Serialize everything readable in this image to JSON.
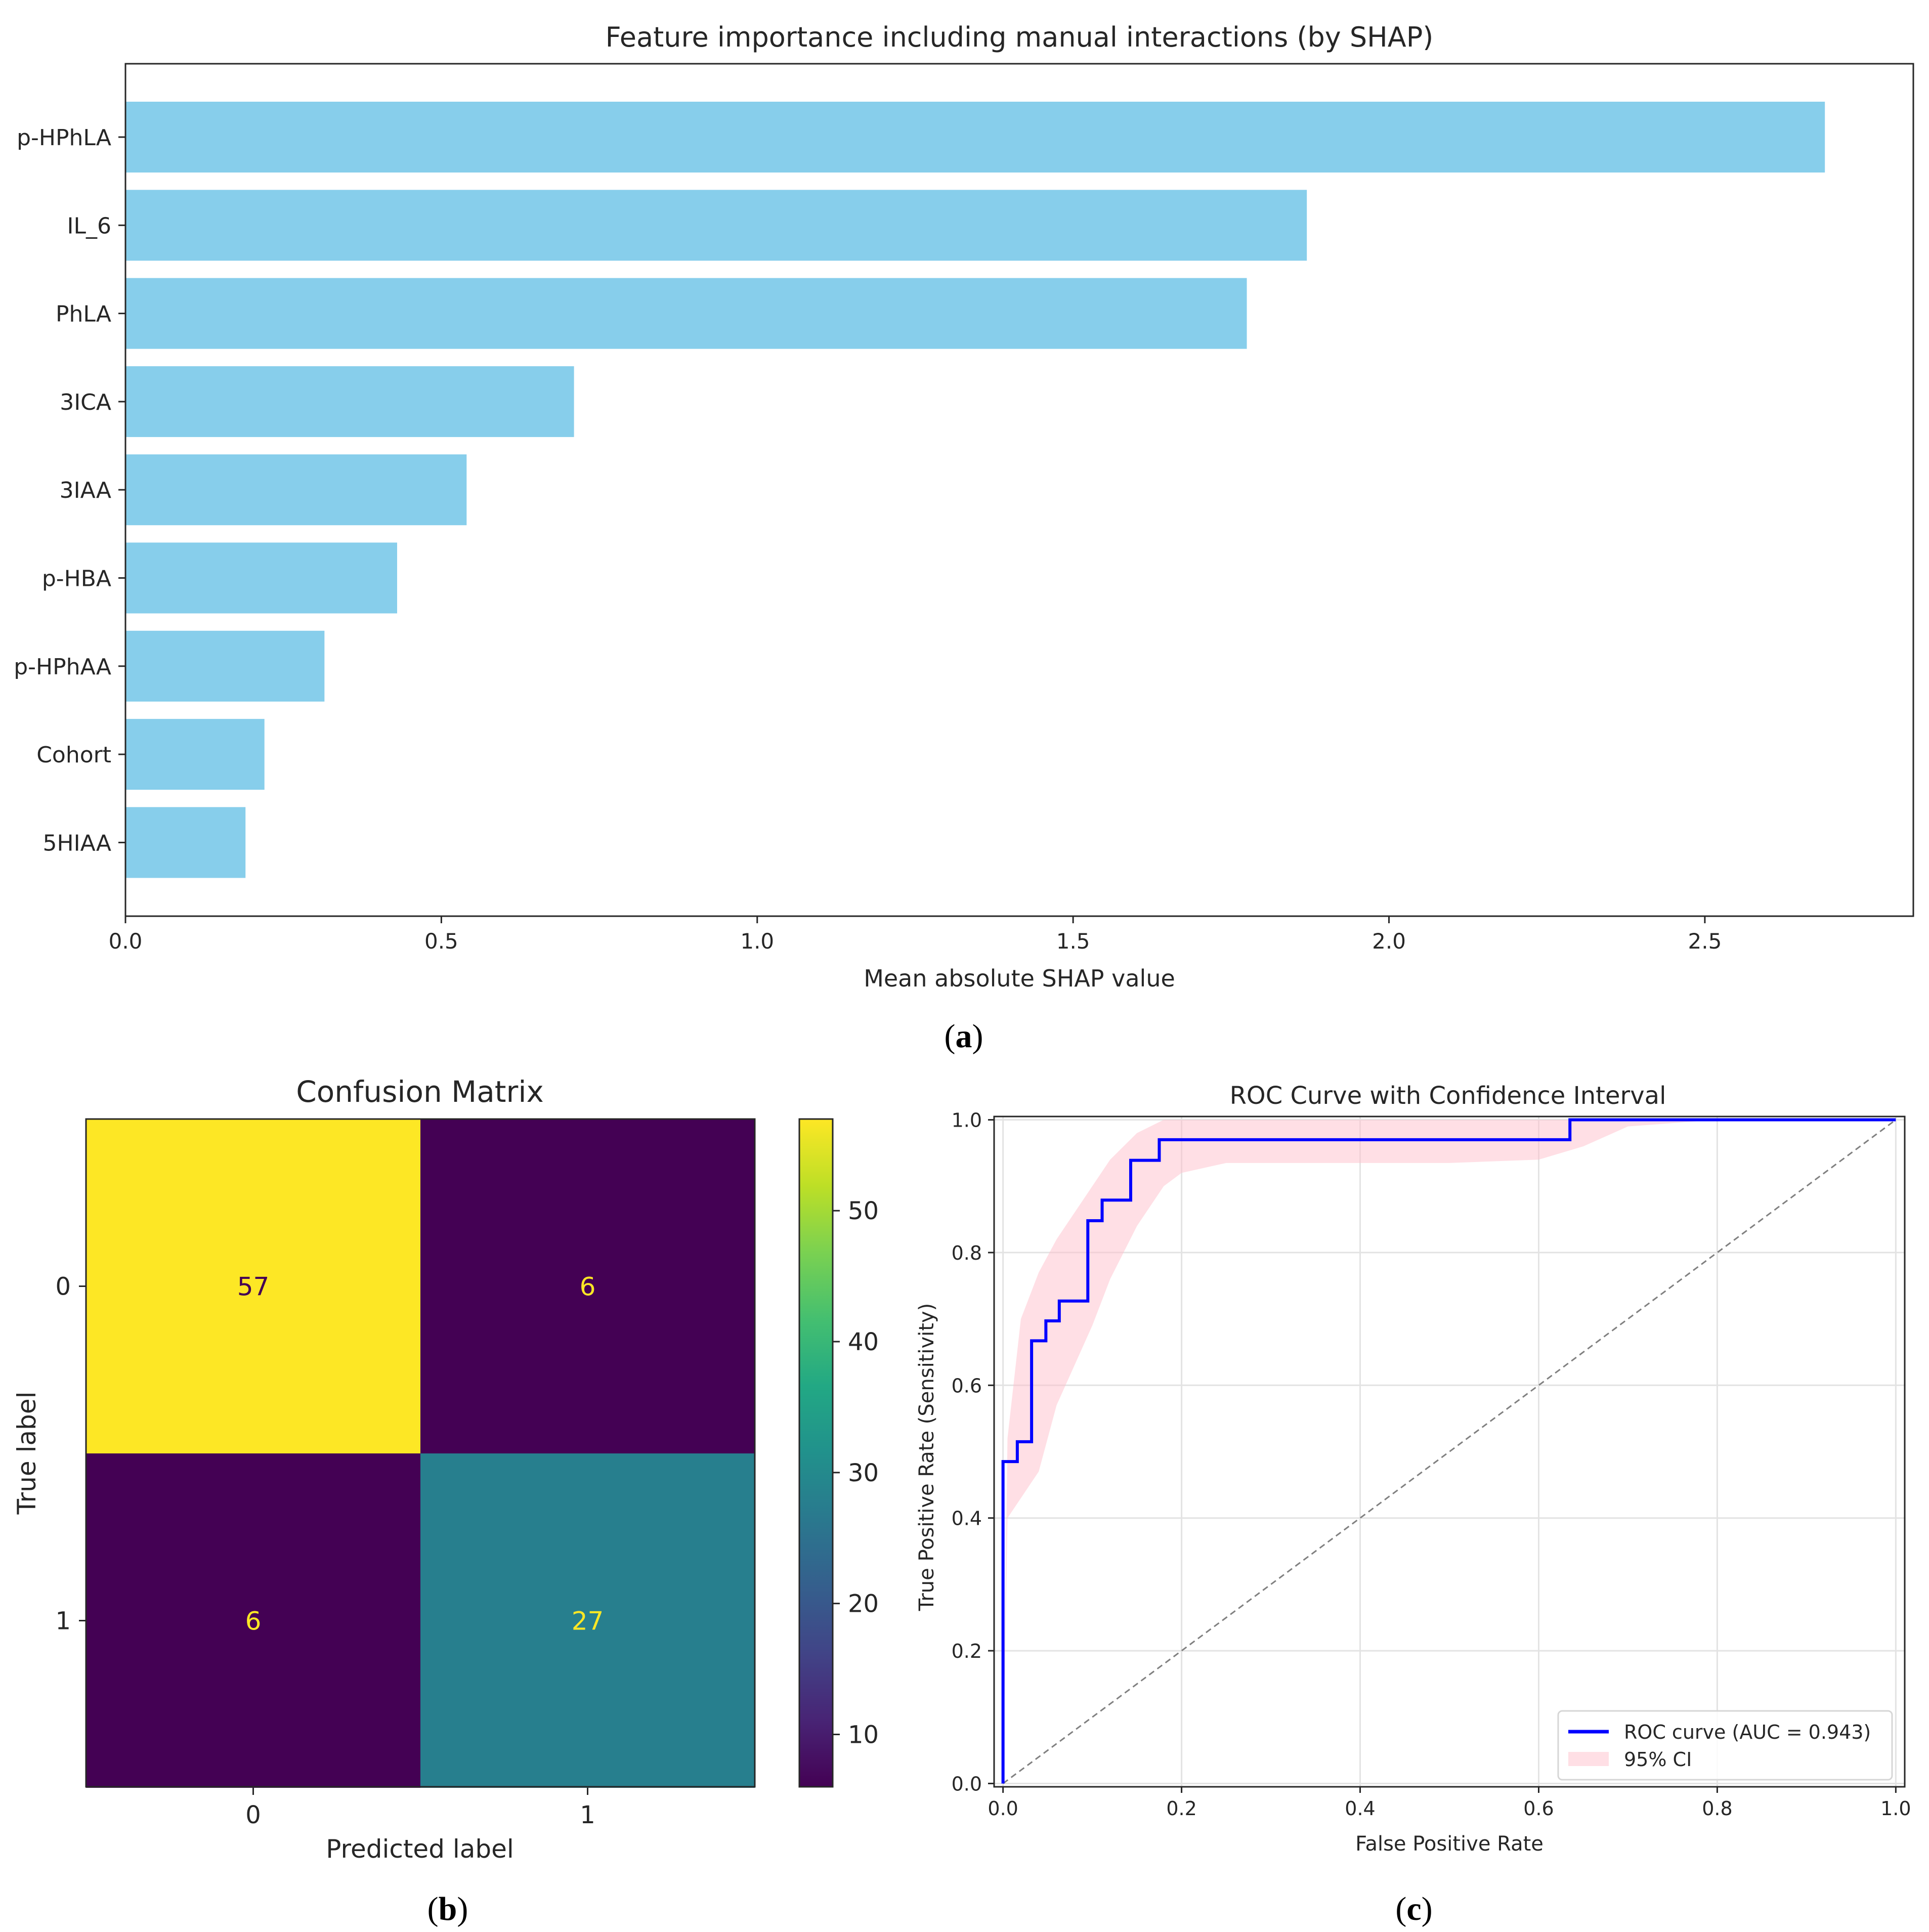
{
  "chart_data": [
    {
      "type": "bar",
      "orientation": "horizontal",
      "panel_label": "(a)",
      "panel_letter": "a",
      "title": "Feature importance including manual interactions (by SHAP)",
      "xlabel": "Mean absolute SHAP value",
      "ylabel": "",
      "categories": [
        "p-HPhLA",
        "IL_6",
        "PhLA",
        "3ICA",
        "3IAA",
        "p-HBA",
        "p-HPhAA",
        "Cohort",
        "5HIAA"
      ],
      "values": [
        2.69,
        1.87,
        1.775,
        0.71,
        0.54,
        0.43,
        0.315,
        0.22,
        0.19
      ],
      "xlim": [
        0,
        2.83
      ],
      "xticks": [
        "0.0",
        "0.5",
        "1.0",
        "1.5",
        "2.0",
        "2.5"
      ],
      "color": "#87CEEB",
      "grid": false
    },
    {
      "type": "heatmap",
      "panel_label": "(b)",
      "panel_letter": "b",
      "title": "Confusion Matrix",
      "xlabel": "Predicted label",
      "ylabel": "True label",
      "x_categories": [
        "0",
        "1"
      ],
      "y_categories": [
        "0",
        "1"
      ],
      "matrix": [
        [
          57,
          6
        ],
        [
          6,
          27
        ]
      ],
      "cell_text": [
        [
          "57",
          "6"
        ],
        [
          "6",
          "27"
        ]
      ],
      "colormap": "viridis",
      "colorbar_range": [
        6,
        57
      ],
      "colorbar_ticks": [
        10,
        20,
        30,
        40,
        50
      ],
      "colorbar_tick_labels": [
        "10",
        "20",
        "30",
        "40",
        "50"
      ],
      "cell_colors": [
        [
          "#FDE725",
          "#440154"
        ],
        [
          "#440154",
          "#277F8E"
        ]
      ],
      "text_colors": [
        [
          "#440154",
          "#FDE725"
        ],
        [
          "#FDE725",
          "#FDE725"
        ]
      ]
    },
    {
      "type": "line",
      "panel_label": "(c)",
      "panel_letter": "c",
      "title": "ROC Curve with Confidence Interval",
      "xlabel": "False Positive Rate",
      "ylabel": "True Positive Rate (Sensitivity)",
      "xlim": [
        -0.01,
        1.01
      ],
      "ylim": [
        -0.005,
        1.005
      ],
      "xticks": [
        "0.0",
        "0.2",
        "0.4",
        "0.6",
        "0.8",
        "1.0"
      ],
      "yticks": [
        "0.0",
        "0.2",
        "0.4",
        "0.6",
        "0.8",
        "1.0"
      ],
      "grid": true,
      "legend_position": "lower-right",
      "series": [
        {
          "name": "ROC curve (AUC = 0.943)",
          "color": "#0000FF",
          "x": [
            0,
            0,
            0.016,
            0.016,
            0.032,
            0.032,
            0.048,
            0.048,
            0.063,
            0.063,
            0.095,
            0.095,
            0.111,
            0.111,
            0.143,
            0.143,
            0.175,
            0.175,
            0.635,
            0.635,
            1.0
          ],
          "y": [
            0,
            0.485,
            0.485,
            0.515,
            0.515,
            0.667,
            0.667,
            0.697,
            0.697,
            0.727,
            0.727,
            0.848,
            0.848,
            0.879,
            0.879,
            0.939,
            0.939,
            0.97,
            0.97,
            1.0,
            1.0
          ]
        },
        {
          "name": "diagonal",
          "color": "#808080",
          "dashed": true,
          "x": [
            0,
            1
          ],
          "y": [
            0,
            1
          ]
        }
      ],
      "ci_band": {
        "name": "95% CI",
        "color": "#FFC0CB",
        "x": [
          0,
          0.005,
          0.02,
          0.04,
          0.06,
          0.08,
          0.1,
          0.12,
          0.15,
          0.18,
          0.2,
          0.25,
          0.3,
          0.4,
          0.5,
          0.6,
          0.65,
          0.7,
          0.8,
          1.0
        ],
        "lower": [
          0,
          0.4,
          0.43,
          0.47,
          0.57,
          0.63,
          0.69,
          0.76,
          0.84,
          0.9,
          0.92,
          0.935,
          0.935,
          0.935,
          0.935,
          0.94,
          0.96,
          0.99,
          1.0,
          1.0
        ],
        "upper": [
          0,
          0.52,
          0.7,
          0.77,
          0.82,
          0.86,
          0.9,
          0.94,
          0.98,
          1.0,
          1.0,
          1.0,
          1.0,
          1.0,
          1.0,
          1.0,
          1.0,
          1.0,
          1.0,
          1.0
        ]
      }
    }
  ]
}
